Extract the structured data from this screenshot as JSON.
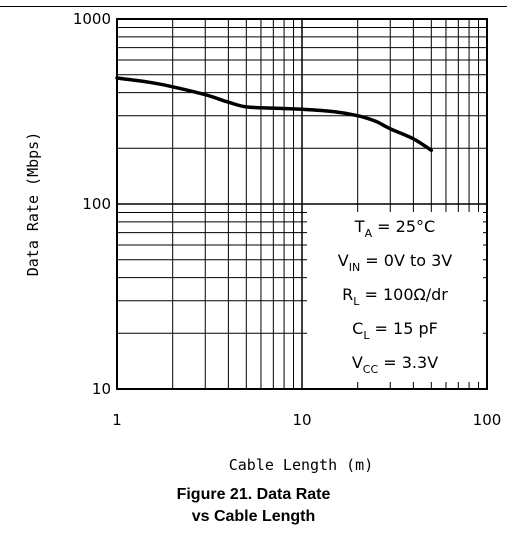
{
  "chart_data": {
    "type": "line",
    "xlabel": "Cable Length (m)",
    "ylabel": "Data Rate (Mbps)",
    "x_scale": "log",
    "y_scale": "log",
    "xlim": [
      1,
      100
    ],
    "ylim": [
      10,
      1000
    ],
    "x_ticks": [
      "1",
      "10",
      "100"
    ],
    "y_ticks": [
      "10",
      "100",
      "1000"
    ],
    "grid": true,
    "series": [
      {
        "x": [
          1,
          1.5,
          2,
          3,
          4,
          5,
          7,
          10,
          15,
          20,
          25,
          30,
          40,
          50
        ],
        "y": [
          480,
          455,
          430,
          390,
          355,
          335,
          330,
          325,
          315,
          300,
          280,
          255,
          225,
          195
        ]
      }
    ],
    "conditions": [
      {
        "main": "T",
        "sub": "A",
        "rest": " = 25°C"
      },
      {
        "main": "V",
        "sub": "IN",
        "rest": " = 0V to 3V"
      },
      {
        "main": "R",
        "sub": "L",
        "rest": " = 100Ω/dr"
      },
      {
        "main": "C",
        "sub": "L",
        "rest": " = 15 pF"
      },
      {
        "main": "V",
        "sub": "CC",
        "rest": " = 3.3V"
      }
    ]
  },
  "caption": {
    "line1": "Figure 21. Data Rate",
    "line2": "vs Cable Length"
  }
}
